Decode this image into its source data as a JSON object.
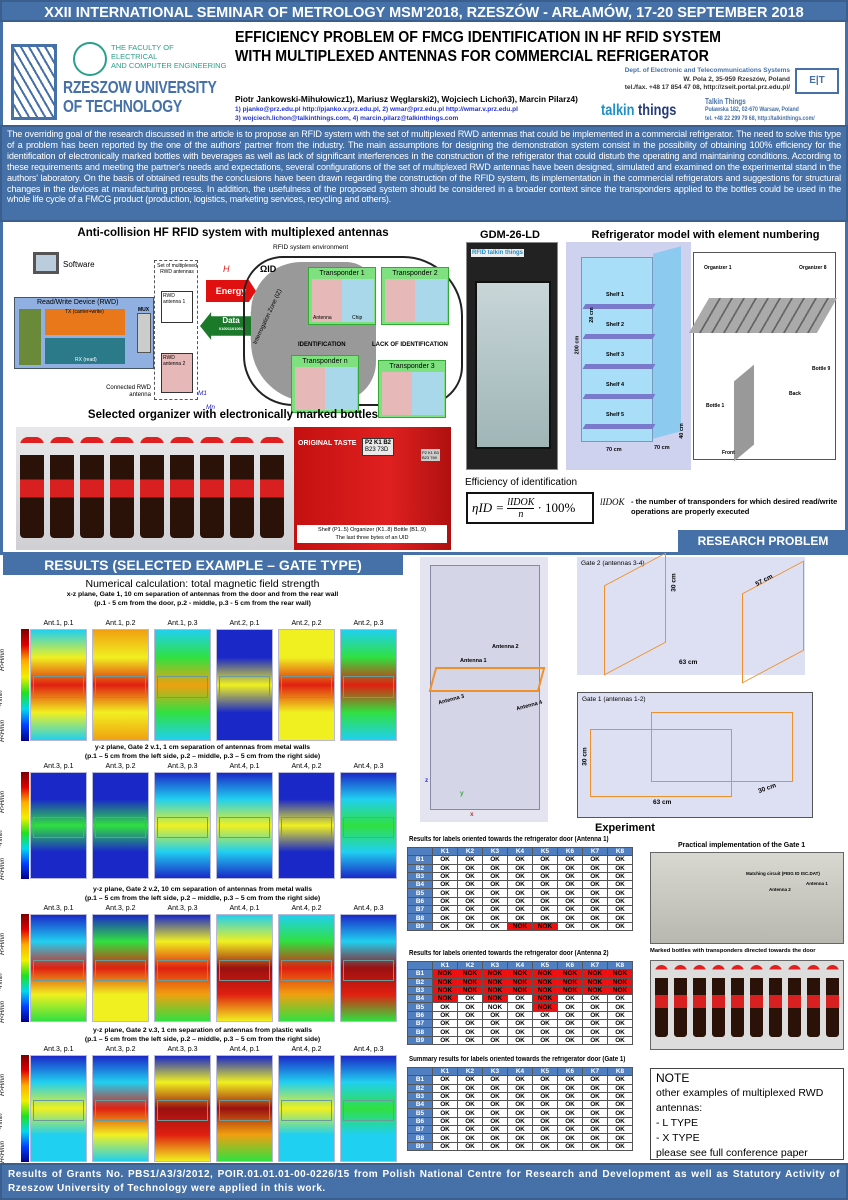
{
  "conference": "XXII INTERNATIONAL SEMINAR OF METROLOGY MSM'2018, RZESZÓW - ARŁAMÓW, 17-20 SEPTEMBER 2018",
  "header": {
    "faculty": [
      "THE FACULTY OF",
      "ELECTRICAL",
      "AND COMPUTER ENGINEERING"
    ],
    "university": [
      "RZESZOW UNIVERSITY",
      "OF TECHNOLOGY"
    ],
    "title": [
      "EFFICIENCY PROBLEM OF FMCG IDENTIFICATION IN HF RFID SYSTEM",
      "WITH MULTIPLEXED ANTENNAS FOR COMMERCIAL REFRIGERATOR"
    ],
    "authors": "Piotr Jankowski-Mihułowicz1), Mariusz Węglarski2), Wojciech Lichoń3), Marcin Pilarz4)",
    "emails": [
      "1) pjanko@prz.edu.pl  http://pjanko.v.prz.edu.pl, 2) wmar@prz.edu.pl  http://wmar.v.prz.edu.pl",
      "3) wojciech.lichon@talkinthings.com, 4) marcin.pilarz@talkinthings.com"
    ],
    "dept": [
      "Dept. of Electronic and Telecommunications Systems",
      "W. Pola 2, 35-959 Rzeszów, Poland",
      "tel./fax. +48 17 854 47 08, http://zseit.portal.prz.edu.pl/"
    ],
    "dept_logo": "EKSIT",
    "company_logo": "talkin things",
    "company": [
      "Talkin Things",
      "Puławska 182, 02-670 Warsaw, Poland",
      "tel. +48 22 299 79 68, http://talkinthings.com/"
    ]
  },
  "abstract": "The overriding goal of the research discussed in the article is to propose an RFID system with the set of multiplexed RWD antennas that could be implemented in a commercial refrigerator. The need to solve this type of a problem has been reported by the one of the authors' partner from the industry. The main assumptions for designing the demonstration system consist in the possibility of obtaining 100% efficiency for the identification of electronically marked bottles with beverages as well as lack of significant interferences in the construction of the refrigerator that could disturb the operating and maintaining conditions. According to these requirements and meeting the partner's needs and expectations, several configurations of the set of multiplexed RWD antennas have been designed, simulated and examined on the experimental stand in the authors' laboratory. On the basis of obtained results the conclusions have been drawn regarding the construction of the RFID system, its implementation in the commercial refrigerators and suggestions for structural changes in the devices at manufacturing process. In addition, the usefulness of the proposed system should be considered in a broader context since the transponders applied to the bottles could be used in the whole life cycle of a FMCG product (production, logistics, marketing services, recycling and others).",
  "problem": {
    "diagram_title": "Anti-collision HF RFID system with multiplexed antennas",
    "labels": {
      "software": "Software",
      "rwd": "Read/Write Device (RWD)",
      "tx": "TX (carrier+write)",
      "rx": "RX (read)",
      "mux": "MUX",
      "set": "Set of multiplexed RWD antennas",
      "ant1": "RWD antenna 1",
      "ant2": "RWD antenna 2",
      "connected": "Connected RWD antenna",
      "env": "RFID system environment",
      "energy": "Energy",
      "data": "Data",
      "bits": "01001101001",
      "h": "H",
      "omega": "ΩID",
      "iz": "Interrogation Zone (IZ)",
      "t1": "Transponder 1",
      "t2": "Transponder 2",
      "t3": "Transponder 3",
      "tn": "Transponder n",
      "antenna": "Antenna",
      "chip": "Chip",
      "identification": "IDENTIFICATION",
      "lack": "LACK OF IDENTIFICATION",
      "m1": "M1",
      "mn": "Mn"
    },
    "organizer_title": "Selected organizer with electronically marked bottles",
    "closeup": {
      "brand_text": "ORIGINAL TASTE",
      "tag1": "P2 K1 B2",
      "uid1": "B23 73D",
      "tag2": "P2 K1 B3",
      "uid2": "B23 769",
      "caption1": "Shelf (P1..5) Organizer (K1..8) Bottle (B1..9)",
      "caption2": "The last three bytes of an UID"
    },
    "fridge_title": "GDM-26-LD",
    "fridge_logo": "RFID talkin things",
    "model_title": "Refrigerator model with element numbering",
    "shelves": [
      "Shelf 1",
      "Shelf 2",
      "Shelf 3",
      "Shelf 4",
      "Shelf 5"
    ],
    "dims": {
      "h": "200 cm",
      "shelf": "28 cm",
      "w": "70 cm",
      "d": "70 cm",
      "base": "40 cm"
    },
    "organizer": {
      "o1": "Organizer 1",
      "o8": "Organizer 8",
      "b1": "Bottle 1",
      "b9": "Bottle 9",
      "back": "Back",
      "front": "Front"
    },
    "efficiency_title": "Efficiency of identification",
    "formula": {
      "lhs": "ηID =",
      "num": "lIDOK",
      "den": "n",
      "tail": "· 100%"
    },
    "symbol": "lIDOK",
    "definition": "- the number of transponders for which desired read/write operations are properly executed",
    "badge": "RESEARCH PROBLEM"
  },
  "results": {
    "heading": "RESULTS (SELECTED EXAMPLE – GATE TYPE)",
    "numerical_title": "Numerical calculation: total magnetic field strength",
    "colorbar": {
      "upper": "H>Hmin",
      "mid": "~Hmin",
      "lower": "H<Hmin"
    },
    "groups": [
      {
        "caption": [
          "x-z plane, Gate 1, 10 cm separation of antennas from the door and from the rear wall",
          "(p.1 - 5 cm from the door, p.2 - middle, p.3 - 5 cm from the rear wall)"
        ],
        "panels": [
          "Ant.1, p.1",
          "Ant.1, p.2",
          "Ant.1, p.3",
          "Ant.2, p.1",
          "Ant.2, p.2",
          "Ant.2, p.3"
        ]
      },
      {
        "caption": [
          "y-z plane, Gate 2 v.1, 1 cm separation of antennas from metal walls",
          "(p.1 – 5 cm from the left side, p.2 – middle, p.3 – 5 cm from the right side)"
        ],
        "panels": [
          "Ant.3, p.1",
          "Ant.3, p.2",
          "Ant.3, p.3",
          "Ant.4, p.1",
          "Ant.4, p.2",
          "Ant.4, p.3"
        ]
      },
      {
        "caption": [
          "y-z plane, Gate 2 v.2, 10 cm separation of antennas from metal walls",
          "(p.1 – 5 cm from the left side, p.2 – middle, p.3 – 5 cm from the right side)"
        ],
        "panels": [
          "Ant.3, p.1",
          "Ant.3, p.2",
          "Ant.3, p.3",
          "Ant.4, p.1",
          "Ant.4, p.2",
          "Ant.4, p.3"
        ]
      },
      {
        "caption": [
          "y-z plane, Gate 2 v.3, 1 cm separation of antennas from plastic walls",
          "(p.1 – 5 cm from the left side, p.2 – middle, p.3 – 5 cm from the right side)"
        ],
        "panels": [
          "Ant.3, p.1",
          "Ant.3, p.2",
          "Ant.3, p.3",
          "Ant.4, p.1",
          "Ant.4, p.2",
          "Ant.4, p.3"
        ]
      }
    ],
    "model3d": {
      "a1": "Antenna 1",
      "a2": "Antenna 2",
      "a3": "Antenna 3",
      "a4": "Antenna 4",
      "z": "z",
      "y": "y",
      "x": "x"
    },
    "gate2": {
      "title": "Gate 2 (antennas 3-4)",
      "h": "30 cm",
      "d": "57 cm",
      "w": "63 cm"
    },
    "gate1": {
      "title": "Gate 1 (antennas 1-2)",
      "h": "30 cm",
      "w": "63 cm",
      "d": "30 cm"
    },
    "experiment_title": "Experiment",
    "columns": [
      "K1",
      "K2",
      "K3",
      "K4",
      "K5",
      "K6",
      "K7",
      "K8"
    ],
    "rows": [
      "B1",
      "B2",
      "B3",
      "B4",
      "B5",
      "B6",
      "B7",
      "B8",
      "B9"
    ],
    "fail_color": "#ee1010",
    "tables": [
      {
        "caption": "Results for labels oriented towards the refrigerator door (Antenna 1)",
        "cells": [
          [
            "OK",
            "OK",
            "OK",
            "OK",
            "OK",
            "OK",
            "OK",
            "OK"
          ],
          [
            "OK",
            "OK",
            "OK",
            "OK",
            "OK",
            "OK",
            "OK",
            "OK"
          ],
          [
            "OK",
            "OK",
            "OK",
            "OK",
            "OK",
            "OK",
            "OK",
            "OK"
          ],
          [
            "OK",
            "OK",
            "OK",
            "OK",
            "OK",
            "OK",
            "OK",
            "OK"
          ],
          [
            "OK",
            "OK",
            "OK",
            "OK",
            "OK",
            "OK",
            "OK",
            "OK"
          ],
          [
            "OK",
            "OK",
            "OK",
            "OK",
            "OK",
            "OK",
            "OK",
            "OK"
          ],
          [
            "OK",
            "OK",
            "OK",
            "OK",
            "OK",
            "OK",
            "OK",
            "OK"
          ],
          [
            "OK",
            "OK",
            "OK",
            "OK",
            "OK",
            "OK",
            "OK",
            "OK"
          ],
          [
            "OK",
            "OK",
            "OK",
            "NOK",
            "NOK",
            "OK",
            "OK",
            "OK"
          ]
        ],
        "unhighlighted": []
      },
      {
        "caption": "Results for labels oriented towards the refrigerator door (Antenna 2)",
        "cells": [
          [
            "NOK",
            "NOK",
            "NOK",
            "NOK",
            "NOK",
            "NOK",
            "NOK",
            "NOK"
          ],
          [
            "NOK",
            "NOK",
            "NOK",
            "NOK",
            "NOK",
            "NOK",
            "NOK",
            "NOK"
          ],
          [
            "NOK",
            "NOK",
            "NOK",
            "NOK",
            "NOK",
            "NOK",
            "NOK",
            "NOK"
          ],
          [
            "NOK",
            "OK",
            "NOK",
            "OK",
            "NOK",
            "OK",
            "OK",
            "OK"
          ],
          [
            "OK",
            "OK",
            "NOK",
            "OK",
            "NOK",
            "OK",
            "OK",
            "OK"
          ],
          [
            "OK",
            "OK",
            "OK",
            "OK",
            "OK",
            "OK",
            "OK",
            "OK"
          ],
          [
            "OK",
            "OK",
            "OK",
            "OK",
            "OK",
            "OK",
            "OK",
            "OK"
          ],
          [
            "OK",
            "OK",
            "OK",
            "OK",
            "OK",
            "OK",
            "OK",
            "OK"
          ],
          [
            "OK",
            "OK",
            "OK",
            "OK",
            "OK",
            "OK",
            "OK",
            "OK"
          ]
        ],
        "unhighlighted": [
          [
            4,
            2
          ]
        ]
      },
      {
        "caption": "Summary results for labels oriented towards the refrigerator door (Gate 1)",
        "cells": [
          [
            "OK",
            "OK",
            "OK",
            "OK",
            "OK",
            "OK",
            "OK",
            "OK"
          ],
          [
            "OK",
            "OK",
            "OK",
            "OK",
            "OK",
            "OK",
            "OK",
            "OK"
          ],
          [
            "OK",
            "OK",
            "OK",
            "OK",
            "OK",
            "OK",
            "OK",
            "OK"
          ],
          [
            "OK",
            "OK",
            "OK",
            "OK",
            "OK",
            "OK",
            "OK",
            "OK"
          ],
          [
            "OK",
            "OK",
            "OK",
            "OK",
            "OK",
            "OK",
            "OK",
            "OK"
          ],
          [
            "OK",
            "OK",
            "OK",
            "OK",
            "OK",
            "OK",
            "OK",
            "OK"
          ],
          [
            "OK",
            "OK",
            "OK",
            "OK",
            "OK",
            "OK",
            "OK",
            "OK"
          ],
          [
            "OK",
            "OK",
            "OK",
            "OK",
            "OK",
            "OK",
            "OK",
            "OK"
          ],
          [
            "OK",
            "OK",
            "OK",
            "OK",
            "OK",
            "OK",
            "OK",
            "OK"
          ]
        ],
        "unhighlighted": []
      }
    ],
    "practical_title": "Practical implementation of the Gate 1",
    "practical_labels": {
      "matching": "Matching circuit (FEIG ID ISC.DAT)",
      "a1": "Antenna 1",
      "a2": "Antenna 2"
    },
    "bottles_title": "Marked bottles with transponders directed towards the door",
    "note": [
      "NOTE",
      "other examples of multiplexed RWD antennas:",
      "- L TYPE",
      "- X TYPE",
      "please see full conference paper"
    ]
  },
  "footer": "Results of Grants No. PBS1/A3/3/2012, POIR.01.01.01-00-0226/15 from Polish National Centre for Research and Development as well as Statutory Activity of Rzeszow University of Technology were applied in this work.",
  "colors": {
    "primary": "#4571a8",
    "table_header": "#4f7fc0",
    "energy": "#e01010",
    "data": "#1a7a2a",
    "antenna": "#f0902a"
  }
}
